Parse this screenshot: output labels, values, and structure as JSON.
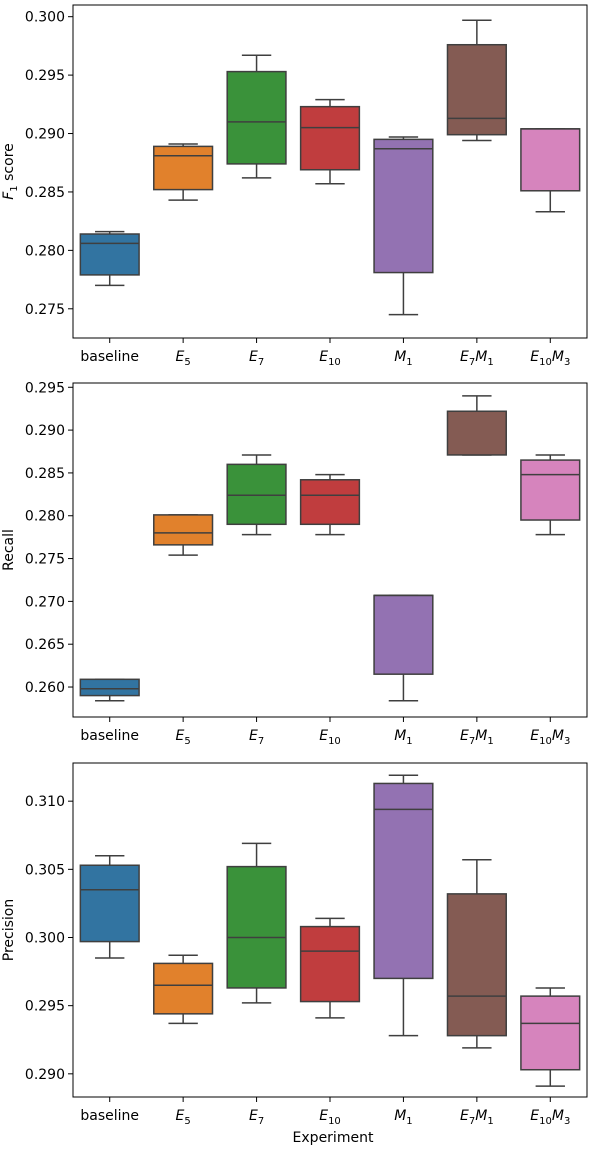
{
  "xlabel": "Experiment",
  "chart_data": [
    {
      "type": "box",
      "ylabel": "F",
      "ylabel_sub": "1",
      "ylabel_rest": " score",
      "ylim": [
        0.2725,
        0.301
      ],
      "yticks": [
        0.275,
        0.28,
        0.285,
        0.29,
        0.295,
        0.3
      ],
      "categories": [
        {
          "main": "baseline",
          "s1": "",
          "main2": "",
          "s2": ""
        },
        {
          "main": "E",
          "s1": "5",
          "main2": "",
          "s2": ""
        },
        {
          "main": "E",
          "s1": "7",
          "main2": "",
          "s2": ""
        },
        {
          "main": "E",
          "s1": "10",
          "main2": "",
          "s2": ""
        },
        {
          "main": "M",
          "s1": "1",
          "main2": "",
          "s2": ""
        },
        {
          "main": "E",
          "s1": "7",
          "main2": "M",
          "s2": "1"
        },
        {
          "main": "E",
          "s1": "10",
          "main2": "M",
          "s2": "3"
        }
      ],
      "colors": [
        "#3274a1",
        "#e1812c",
        "#3a923a",
        "#c03d3e",
        "#9372b2",
        "#845b53",
        "#d684bd"
      ],
      "boxes": [
        {
          "whislo": 0.277,
          "q1": 0.2779,
          "med": 0.2806,
          "q3": 0.2814,
          "whishi": 0.2816
        },
        {
          "whislo": 0.2843,
          "q1": 0.2852,
          "med": 0.2881,
          "q3": 0.2889,
          "whishi": 0.2891
        },
        {
          "whislo": 0.2862,
          "q1": 0.2874,
          "med": 0.291,
          "q3": 0.2953,
          "whishi": 0.2967
        },
        {
          "whislo": 0.2857,
          "q1": 0.2869,
          "med": 0.2905,
          "q3": 0.2923,
          "whishi": 0.2929
        },
        {
          "whislo": 0.2745,
          "q1": 0.2781,
          "med": 0.2887,
          "q3": 0.2895,
          "whishi": 0.2897
        },
        {
          "whislo": 0.2894,
          "q1": 0.2899,
          "med": 0.2913,
          "q3": 0.2976,
          "whishi": 0.2997
        },
        {
          "whislo": 0.2833,
          "q1": 0.2851,
          "med": 0.2904,
          "q3": 0.2904,
          "whishi": 0.2904
        }
      ]
    },
    {
      "type": "box",
      "ylabel": "Recall",
      "ylabel_sub": "",
      "ylabel_rest": "",
      "ylim": [
        0.2565,
        0.2955
      ],
      "yticks": [
        0.26,
        0.265,
        0.27,
        0.275,
        0.28,
        0.285,
        0.29,
        0.295
      ],
      "categories": [
        {
          "main": "baseline",
          "s1": "",
          "main2": "",
          "s2": ""
        },
        {
          "main": "E",
          "s1": "5",
          "main2": "",
          "s2": ""
        },
        {
          "main": "E",
          "s1": "7",
          "main2": "",
          "s2": ""
        },
        {
          "main": "E",
          "s1": "10",
          "main2": "",
          "s2": ""
        },
        {
          "main": "M",
          "s1": "1",
          "main2": "",
          "s2": ""
        },
        {
          "main": "E",
          "s1": "7",
          "main2": "M",
          "s2": "1"
        },
        {
          "main": "E",
          "s1": "10",
          "main2": "M",
          "s2": "3"
        }
      ],
      "colors": [
        "#3274a1",
        "#e1812c",
        "#3a923a",
        "#c03d3e",
        "#9372b2",
        "#845b53",
        "#d684bd"
      ],
      "boxes": [
        {
          "whislo": 0.2584,
          "q1": 0.259,
          "med": 0.2598,
          "q3": 0.2609,
          "whishi": 0.2609
        },
        {
          "whislo": 0.2754,
          "q1": 0.2766,
          "med": 0.278,
          "q3": 0.2801,
          "whishi": 0.2801
        },
        {
          "whislo": 0.2778,
          "q1": 0.279,
          "med": 0.2824,
          "q3": 0.286,
          "whishi": 0.2871
        },
        {
          "whislo": 0.2778,
          "q1": 0.279,
          "med": 0.2824,
          "q3": 0.2842,
          "whishi": 0.2848
        },
        {
          "whislo": 0.2584,
          "q1": 0.2615,
          "med": 0.2707,
          "q3": 0.2707,
          "whishi": 0.2707
        },
        {
          "whislo": 0.2871,
          "q1": 0.2871,
          "med": 0.2922,
          "q3": 0.2922,
          "whishi": 0.294
        },
        {
          "whislo": 0.2778,
          "q1": 0.2795,
          "med": 0.2848,
          "q3": 0.2865,
          "whishi": 0.2871
        }
      ]
    },
    {
      "type": "box",
      "ylabel": "Precision",
      "ylabel_sub": "",
      "ylabel_rest": "",
      "ylim": [
        0.2883,
        0.3128
      ],
      "yticks": [
        0.29,
        0.295,
        0.3,
        0.305,
        0.31
      ],
      "categories": [
        {
          "main": "baseline",
          "s1": "",
          "main2": "",
          "s2": ""
        },
        {
          "main": "E",
          "s1": "5",
          "main2": "",
          "s2": ""
        },
        {
          "main": "E",
          "s1": "7",
          "main2": "",
          "s2": ""
        },
        {
          "main": "E",
          "s1": "10",
          "main2": "",
          "s2": ""
        },
        {
          "main": "M",
          "s1": "1",
          "main2": "",
          "s2": ""
        },
        {
          "main": "E",
          "s1": "7",
          "main2": "M",
          "s2": "1"
        },
        {
          "main": "E",
          "s1": "10",
          "main2": "M",
          "s2": "3"
        }
      ],
      "colors": [
        "#3274a1",
        "#e1812c",
        "#3a923a",
        "#c03d3e",
        "#9372b2",
        "#845b53",
        "#d684bd"
      ],
      "boxes": [
        {
          "whislo": 0.2985,
          "q1": 0.2997,
          "med": 0.3035,
          "q3": 0.3053,
          "whishi": 0.306
        },
        {
          "whislo": 0.2937,
          "q1": 0.2944,
          "med": 0.2965,
          "q3": 0.2981,
          "whishi": 0.2987
        },
        {
          "whislo": 0.2952,
          "q1": 0.2963,
          "med": 0.3,
          "q3": 0.3052,
          "whishi": 0.3069
        },
        {
          "whislo": 0.2941,
          "q1": 0.2953,
          "med": 0.299,
          "q3": 0.3008,
          "whishi": 0.3014
        },
        {
          "whislo": 0.2928,
          "q1": 0.297,
          "med": 0.3094,
          "q3": 0.3113,
          "whishi": 0.3119
        },
        {
          "whislo": 0.2919,
          "q1": 0.2928,
          "med": 0.2957,
          "q3": 0.3032,
          "whishi": 0.3057
        },
        {
          "whislo": 0.2891,
          "q1": 0.2903,
          "med": 0.2937,
          "q3": 0.2957,
          "whishi": 0.2963
        }
      ]
    }
  ]
}
